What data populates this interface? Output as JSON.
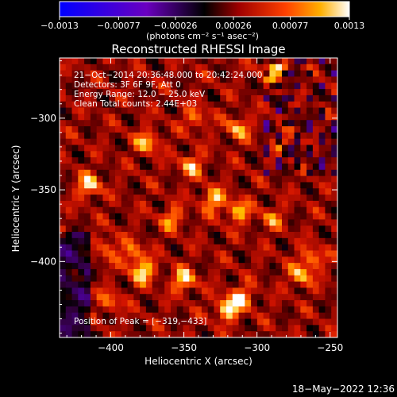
{
  "chart_data": {
    "type": "heatmap",
    "title": "Reconstructed RHESSI Image",
    "xlabel": "Heliocentric X (arcsec)",
    "ylabel": "Heliocentric Y (arcsec)",
    "xlim": [
      -435,
      -245
    ],
    "ylim": [
      -453,
      -258
    ],
    "x_ticks": [
      -400,
      -350,
      -300,
      -250
    ],
    "x_tick_labels": [
      "−400",
      "−350",
      "−300",
      "−250"
    ],
    "y_ticks": [
      -300,
      -350,
      -400
    ],
    "y_tick_labels": [
      "−300",
      "−350",
      "−400"
    ],
    "colorbar": {
      "min": -0.0013,
      "max": 0.0013,
      "ticks": [
        -0.0013,
        -0.00077,
        -0.00026,
        0.00026,
        0.00077,
        0.0013
      ],
      "tick_labels": [
        "−0.0013",
        "−0.00077",
        "−0.00026",
        "0.00026",
        "0.00077",
        "0.0013"
      ],
      "unit_label": "(photons cm⁻² s⁻¹ asec⁻²)"
    },
    "annotations": [
      "21−Oct−2014 20:36:48.000 to 20:42:24.000",
      "Detectors: 3F 6F 9F, Att 0",
      "Energy Range: 12.0 − 25.0 keV",
      "Clean     Total counts: 2.44E+03"
    ],
    "peak_label": "Position of Peak = [−319,−433]",
    "peak": [
      -319,
      -433
    ],
    "bright_sources": [
      [
        -288,
        -266,
        0.95
      ],
      [
        -313,
        -307,
        0.7
      ],
      [
        -375,
        -317,
        0.75
      ],
      [
        -415,
        -347,
        0.85
      ],
      [
        -345,
        -333,
        0.7
      ],
      [
        -330,
        -357,
        0.8
      ],
      [
        -313,
        -365,
        0.75
      ],
      [
        -358,
        -370,
        0.6
      ],
      [
        -280,
        -318,
        0.55
      ],
      [
        -402,
        -390,
        0.5
      ],
      [
        -385,
        -395,
        0.6
      ],
      [
        -378,
        -407,
        0.9
      ],
      [
        -350,
        -413,
        0.85
      ],
      [
        -320,
        -433,
        1.0
      ],
      [
        -310,
        -425,
        0.7
      ],
      [
        -262,
        -398,
        0.65
      ],
      [
        -270,
        -410,
        0.7
      ],
      [
        -290,
        -370,
        0.5
      ],
      [
        -342,
        -300,
        0.55
      ],
      [
        -400,
        -428,
        0.5
      ]
    ]
  },
  "footer": {
    "timestamp": "18−May−2022 12:36"
  }
}
